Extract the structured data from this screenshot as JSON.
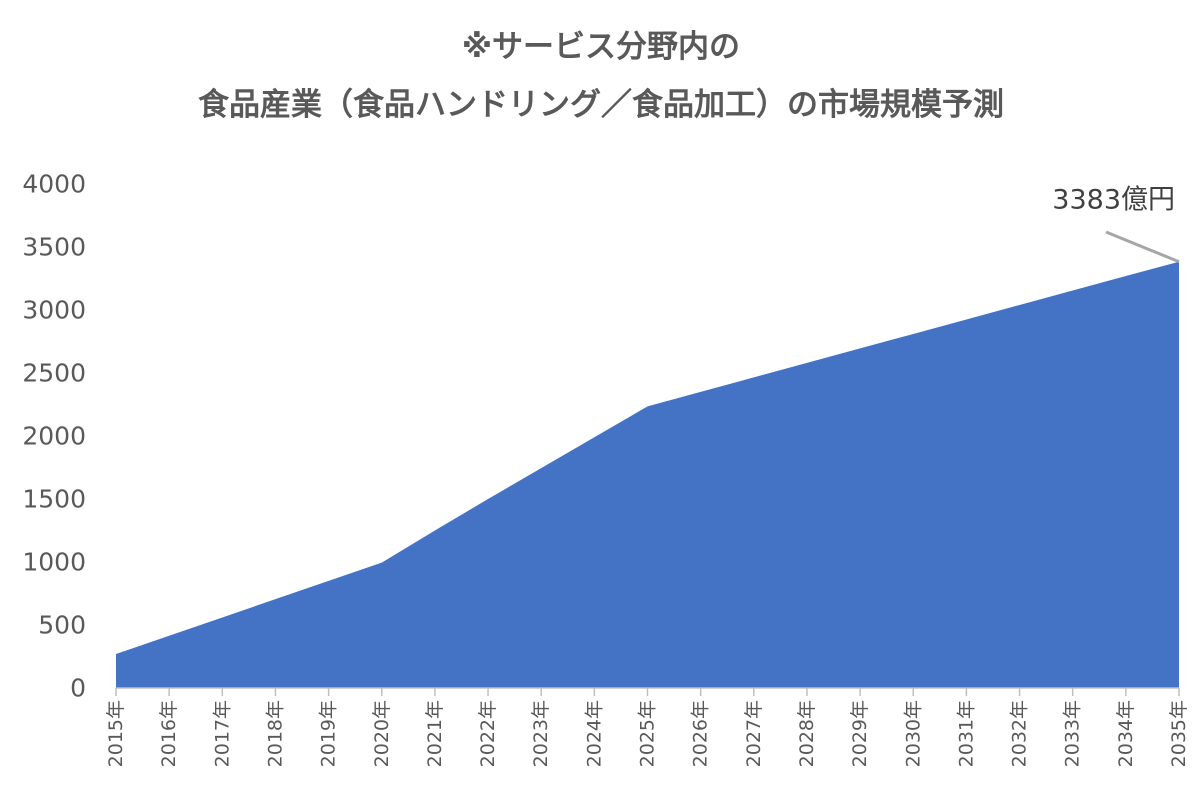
{
  "chart_data": {
    "type": "area",
    "title_line1": "※サービス分野内の",
    "title_line2": "食品産業（食品ハンドリング／食品加工）の市場規模予測",
    "xlabel": "",
    "ylabel": "",
    "x": [
      "2015年",
      "2016年",
      "2017年",
      "2018年",
      "2019年",
      "2020年",
      "2021年",
      "2022年",
      "2023年",
      "2024年",
      "2025年",
      "2026年",
      "2027年",
      "2028年",
      "2029年",
      "2030年",
      "2031年",
      "2032年",
      "2033年",
      "2034年",
      "2035年"
    ],
    "values": [
      270,
      415,
      560,
      705,
      850,
      995,
      1250,
      1500,
      1745,
      1990,
      2235,
      2350,
      2465,
      2580,
      2695,
      2810,
      2925,
      3040,
      3155,
      3270,
      3383
    ],
    "ylim": [
      0,
      4000
    ],
    "yticks": [
      0,
      500,
      1000,
      1500,
      2000,
      2500,
      3000,
      3500,
      4000
    ],
    "grid": false,
    "legend": "none",
    "area_color": "#4472C4",
    "axis_color": "#BFBFBF",
    "annotation": {
      "text": "3383億円",
      "target_index": 20,
      "line_color": "#A6A6A6"
    }
  }
}
